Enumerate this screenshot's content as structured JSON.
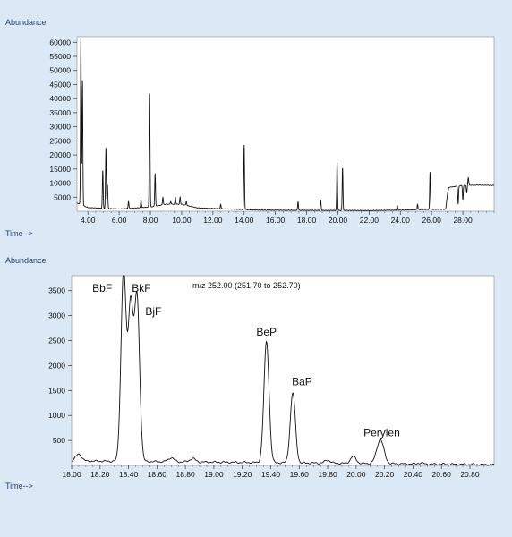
{
  "colors": {
    "background": "#dbe9f6",
    "plot_background": "#ffffff",
    "trace": "#111111",
    "label": "#1f3f7a"
  },
  "chart_data": [
    {
      "type": "line",
      "ylabel": "Abundance",
      "xlabel": "Time-->",
      "xlim": [
        3.3,
        30.0
      ],
      "ylim": [
        0,
        62000
      ],
      "xticks": [
        4.0,
        6.0,
        8.0,
        10.0,
        12.0,
        14.0,
        16.0,
        18.0,
        20.0,
        22.0,
        24.0,
        26.0,
        28.0
      ],
      "xtick_labels": [
        "4.00",
        "6.00",
        "8.00",
        "10.00",
        "12.00",
        "14.00",
        "16.00",
        "18.00",
        "20.00",
        "22.00",
        "24.00",
        "26.00",
        "28.00"
      ],
      "yticks": [
        5000,
        10000,
        15000,
        20000,
        25000,
        30000,
        35000,
        40000,
        45000,
        50000,
        55000,
        60000
      ],
      "ytick_labels": [
        "5000",
        "10000",
        "15000",
        "20000",
        "25000",
        "30000",
        "35000",
        "40000",
        "45000",
        "50000",
        "55000",
        "60000"
      ],
      "peaks": [
        [
          3.55,
          62000
        ],
        [
          3.65,
          46500
        ],
        [
          4.95,
          14500
        ],
        [
          5.15,
          22500
        ],
        [
          5.25,
          9500
        ],
        [
          6.6,
          3500
        ],
        [
          7.4,
          4000
        ],
        [
          7.95,
          42000
        ],
        [
          8.3,
          13500
        ],
        [
          8.8,
          5000
        ],
        [
          9.3,
          3500
        ],
        [
          9.6,
          5000
        ],
        [
          9.9,
          5000
        ],
        [
          10.3,
          3500
        ],
        [
          12.5,
          2500
        ],
        [
          14.0,
          23500
        ],
        [
          17.45,
          3500
        ],
        [
          18.9,
          4000
        ],
        [
          19.95,
          17500
        ],
        [
          20.3,
          15500
        ],
        [
          23.8,
          2000
        ],
        [
          25.1,
          2500
        ],
        [
          25.9,
          14000
        ],
        [
          27.7,
          2500
        ],
        [
          28.0,
          4000
        ],
        [
          28.25,
          6500
        ],
        [
          28.35,
          12000
        ]
      ],
      "baseline": [
        [
          3.3,
          3000
        ],
        [
          4.0,
          1300
        ],
        [
          6.0,
          800
        ],
        [
          8.0,
          1500
        ],
        [
          9.0,
          2500
        ],
        [
          10.0,
          2500
        ],
        [
          11.0,
          1200
        ],
        [
          13.0,
          800
        ],
        [
          15.0,
          400
        ],
        [
          17.0,
          350
        ],
        [
          19.0,
          300
        ],
        [
          20.0,
          300
        ],
        [
          22.0,
          250
        ],
        [
          24.0,
          400
        ],
        [
          25.5,
          600
        ],
        [
          26.9,
          700
        ],
        [
          27.0,
          5500
        ],
        [
          27.1,
          8500
        ],
        [
          28.0,
          9200
        ],
        [
          29.0,
          9300
        ],
        [
          30.0,
          9200
        ]
      ]
    },
    {
      "type": "line",
      "ylabel": "Abundance",
      "xlabel": "Time-->",
      "subtitle": "m/z 252.00 (251.70 to 252.70)",
      "xlim": [
        18.0,
        20.97
      ],
      "ylim": [
        0,
        3800
      ],
      "xticks": [
        18.0,
        18.2,
        18.4,
        18.6,
        18.8,
        19.0,
        19.2,
        19.4,
        19.6,
        19.8,
        20.0,
        20.2,
        20.4,
        20.6,
        20.8
      ],
      "xtick_labels": [
        "18.00",
        "18.20",
        "18.40",
        "18.60",
        "18.80",
        "19.00",
        "19.20",
        "19.40",
        "19.60",
        "19.80",
        "20.00",
        "20.20",
        "20.40",
        "20.60",
        "20.80"
      ],
      "yticks": [
        500,
        1000,
        1500,
        2000,
        2500,
        3000,
        3500
      ],
      "ytick_labels": [
        "500",
        "1000",
        "1500",
        "2000",
        "2500",
        "3000",
        "3500"
      ],
      "peaks": [
        {
          "label": "BbF",
          "x": 18.365,
          "y": 3800
        },
        {
          "label": "",
          "x": 18.415,
          "y": 3100
        },
        {
          "label": "BkF",
          "x": 18.46,
          "y": 3250
        },
        {
          "label": "BeP",
          "x": 19.37,
          "y": 2420
        },
        {
          "label": "BaP",
          "x": 19.555,
          "y": 1400
        },
        {
          "label": "Perylen",
          "x": 20.17,
          "y": 480
        }
      ],
      "minor_peaks": [
        [
          18.05,
          230
        ],
        [
          18.7,
          170
        ],
        [
          18.85,
          160
        ],
        [
          19.8,
          150
        ],
        [
          19.98,
          230
        ],
        [
          20.45,
          110
        ]
      ],
      "annotations": [
        {
          "text": "BbF",
          "x": 18.215,
          "y": 3480
        },
        {
          "text": "BkF",
          "x": 18.49,
          "y": 3480
        },
        {
          "text": "BjF",
          "x": 18.575,
          "y": 3010
        },
        {
          "text": "BeP",
          "x": 19.37,
          "y": 2600
        },
        {
          "text": "BaP",
          "x": 19.62,
          "y": 1600
        },
        {
          "text": "Perylen",
          "x": 20.18,
          "y": 580
        }
      ]
    }
  ]
}
